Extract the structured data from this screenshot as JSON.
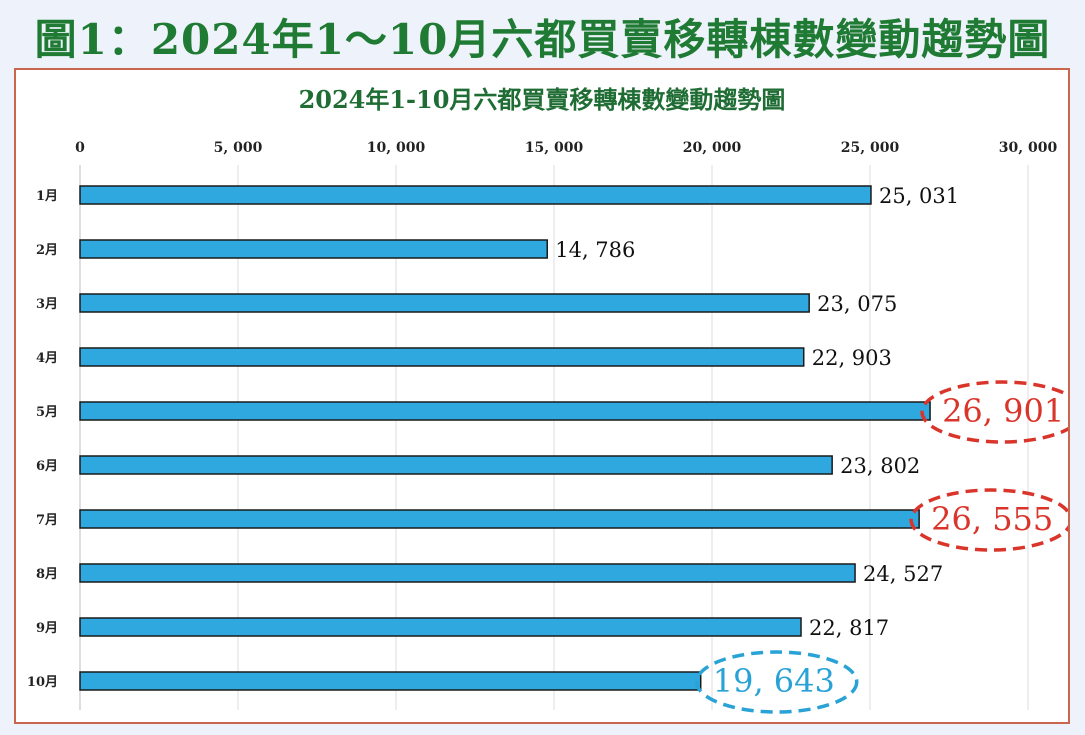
{
  "page_title": "圖1：2024年1～10月六都買賣移轉棟數變動趨勢圖",
  "colors": {
    "bar": "#2ea8de",
    "bar_stroke": "#1a1a1a",
    "title_green": "#1f7a33",
    "frame_border": "#c8664e",
    "highlight_red": "#d9352b",
    "highlight_blue": "#29a3d6"
  },
  "chart_data": {
    "type": "bar",
    "orientation": "horizontal",
    "title": "2024年1-10月六都買賣移轉棟數變動趨勢圖",
    "categories": [
      "1月",
      "2月",
      "3月",
      "4月",
      "5月",
      "6月",
      "7月",
      "8月",
      "9月",
      "10月"
    ],
    "values": [
      25031,
      14786,
      23075,
      22903,
      26901,
      23802,
      26555,
      24527,
      22817,
      19643
    ],
    "value_labels": [
      "25, 031",
      "14, 786",
      "23, 075",
      "22, 903",
      "26, 901",
      "23, 802",
      "26, 555",
      "24, 527",
      "22, 817",
      "19, 643"
    ],
    "highlights": [
      "none",
      "none",
      "none",
      "none",
      "red",
      "none",
      "red",
      "none",
      "none",
      "blue"
    ],
    "xlim": [
      0,
      30000
    ],
    "x_ticks": [
      0,
      5000,
      10000,
      15000,
      20000,
      25000,
      30000
    ],
    "x_tick_labels": [
      "0",
      "5, 000",
      "10, 000",
      "15, 000",
      "20, 000",
      "25, 000",
      "30, 000"
    ],
    "axis_position": "top",
    "grid": true,
    "legend": false
  }
}
